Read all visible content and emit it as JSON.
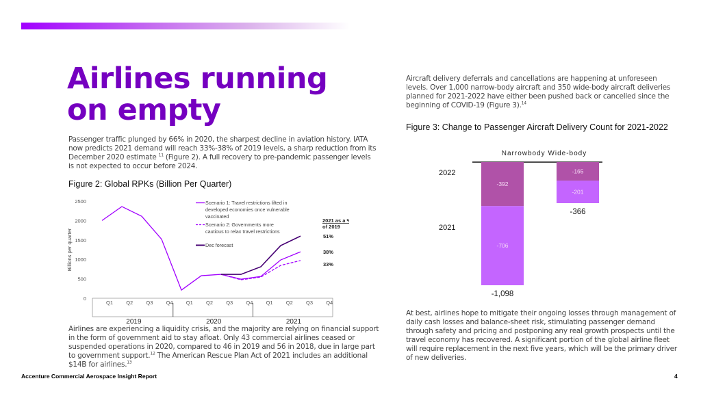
{
  "header": {
    "accent_gradient": [
      "#a100ff",
      "#ffffff"
    ],
    "title_line1": "Airlines running",
    "title_line2": "on empty",
    "title_color": "#7500c0"
  },
  "left": {
    "intro": {
      "text_a": "Passenger traffic plunged by 66% in 2020, the sharpest decline in aviation history. IATA now predicts 2021 demand will reach 33%-38% of 2019 levels, a sharp reduction from its December 2020 estimate ",
      "sup": "11",
      "text_b": " (Figure 2). A full recovery to pre-pandemic passenger levels is not expected to occur before 2024."
    },
    "figure2_title": "Figure 2: Global RPKs (Billion Per Quarter)",
    "body": {
      "text_a": "Airlines are experiencing a liquidity crisis, and the majority are relying on financial support in the form of government aid to stay afloat. Only 43 commercial airlines ceased or suspended operations in 2020, compared to 46 in 2019 and 56 in 2018, due in large part to government support.",
      "sup1": "12",
      "text_b": " The American Rescue Plan Act of 2021 includes an additional $14B for airlines.",
      "sup2": "13"
    }
  },
  "right": {
    "intro": {
      "text_a": "Aircraft delivery deferrals and cancellations are happening at unforeseen levels. Over 1,000 narrow-body aircraft and 350 wide-body aircraft deliveries planned for 2021-2022 have either been pushed back or cancelled since the beginning of COVID-19 (Figure 3).",
      "sup": "14"
    },
    "figure3_title": "Figure 3: Change to Passenger Aircraft Delivery Count for 2021-2022",
    "body": "At best, airlines hope to mitigate their ongoing losses through management of daily cash losses and balance-sheet risk, stimulating passenger demand through safety and pricing and postponing any real growth prospects until the travel economy has recovered. A significant portion of the global airline fleet will require replacement in the next five years, which will be the primary driver of new deliveries."
  },
  "footer": {
    "report_name": "Accenture Commercial Aerospace Insight Report",
    "page_number": "4"
  },
  "chart_data": [
    {
      "type": "line",
      "title": "Figure 2: Global RPKs (Billion Per Quarter)",
      "ylabel": "Billions per quarter",
      "xlabel": "",
      "ylim": [
        0,
        2500
      ],
      "yticks": [
        0,
        500,
        1000,
        1500,
        2000,
        2500
      ],
      "categories": [
        "Q1",
        "Q2",
        "Q3",
        "Q4",
        "Q1",
        "Q2",
        "Q3",
        "Q4",
        "Q1",
        "Q2",
        "Q3",
        "Q4"
      ],
      "year_groups": [
        {
          "label": "2019",
          "span": 4
        },
        {
          "label": "2020",
          "span": 4
        },
        {
          "label": "2021",
          "span": 4
        }
      ],
      "grid": false,
      "legend_position": "top-right",
      "series": [
        {
          "name": "Scenario 1: Travel restrictions lifted in developed economies once vulnerable vaccinated",
          "style": "solid",
          "color": "#a100ff",
          "values": [
            2000,
            2360,
            2110,
            1520,
            210,
            580,
            615,
            490,
            560,
            985,
            1195,
            null
          ],
          "end_label": "38%"
        },
        {
          "name": "Scenario 2: Governments more cautious to relax travel restrictions",
          "style": "dashed",
          "color": "#a100ff",
          "values": [
            null,
            null,
            null,
            null,
            null,
            null,
            615,
            475,
            545,
            845,
            970,
            null
          ],
          "end_label": "33%"
        },
        {
          "name": "Dec forecast",
          "style": "solid",
          "color": "#460073",
          "values": [
            null,
            null,
            null,
            null,
            null,
            null,
            615,
            615,
            810,
            1355,
            1600,
            null
          ],
          "end_label": "51%"
        }
      ],
      "annotation": {
        "line1": "2021 as a %",
        "line2": "of 2019"
      }
    },
    {
      "type": "bar",
      "stacked": true,
      "orientation": "vertical-negative",
      "title": "Figure 3: Change to Passenger Aircraft Delivery Count for 2021-2022",
      "categories": [
        "Narrowbody",
        "Wide-body"
      ],
      "series": [
        {
          "name": "2022",
          "color": "#b052a8",
          "values": [
            -392,
            -165
          ]
        },
        {
          "name": "2021",
          "color": "#c465ff",
          "values": [
            -706,
            -201
          ]
        }
      ],
      "totals": [
        -1098,
        -366
      ],
      "total_labels": [
        "-1,098",
        "-366"
      ],
      "data_labels": [
        [
          "-392",
          "-165"
        ],
        [
          "-706",
          "-201"
        ]
      ],
      "ylim": [
        -1098,
        0
      ]
    }
  ]
}
